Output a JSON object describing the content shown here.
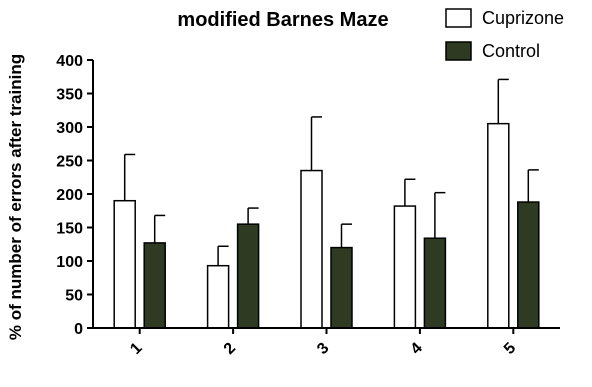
{
  "chart_data": {
    "type": "bar",
    "title": "modified Barnes Maze",
    "xlabel": "",
    "ylabel": "% of number of errors after training",
    "categories": [
      "1",
      "2",
      "3",
      "4",
      "5"
    ],
    "ylim": [
      0,
      400
    ],
    "yticks": [
      0,
      50,
      100,
      150,
      200,
      250,
      300,
      350,
      400
    ],
    "legend_position": "top-right",
    "series": [
      {
        "name": "Cuprizone",
        "color": "#ffffff",
        "values": [
          190,
          93,
          235,
          182,
          305
        ],
        "error": [
          69,
          29,
          80,
          40,
          66
        ]
      },
      {
        "name": "Control",
        "color": "#2f3a22",
        "values": [
          127,
          155,
          120,
          134,
          188
        ],
        "error": [
          41,
          24,
          35,
          68,
          48
        ]
      }
    ]
  }
}
